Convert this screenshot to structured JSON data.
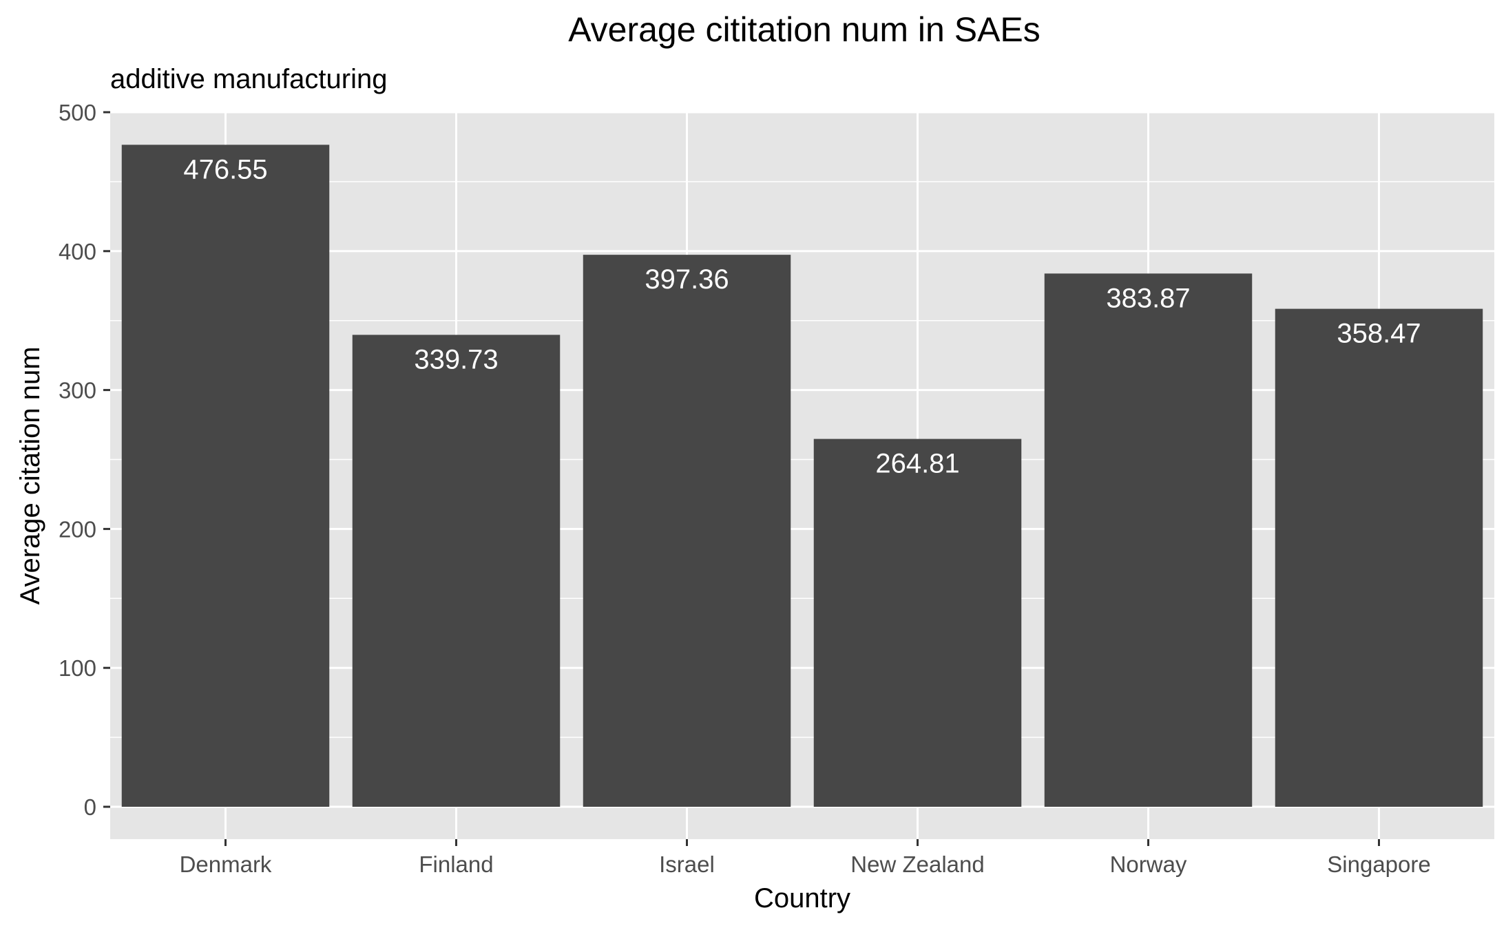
{
  "chart_data": {
    "type": "bar",
    "title": "Average cititation num in SAEs",
    "subtitle": "additive manufacturing",
    "xlabel": "Country",
    "ylabel": "Average citation num",
    "categories": [
      "Denmark",
      "Finland",
      "Israel",
      "New Zealand",
      "Norway",
      "Singapore"
    ],
    "values": [
      476.55,
      339.73,
      397.36,
      264.81,
      383.87,
      358.47
    ],
    "data_labels": [
      "476.55",
      "339.73",
      "397.36",
      "264.81",
      "383.87",
      "358.47"
    ],
    "ylim": [
      0,
      500
    ],
    "y_ticks": [
      0,
      100,
      200,
      300,
      400,
      500
    ],
    "y_tick_labels": [
      "0",
      "100",
      "200",
      "300",
      "400",
      "500"
    ],
    "grid": true,
    "legend": "none",
    "colors": {
      "bar": "#474747",
      "panel": "#e5e5e5",
      "grid": "#ffffff",
      "tick_text": "#4d4d4d",
      "data_label": "#ffffff"
    }
  }
}
